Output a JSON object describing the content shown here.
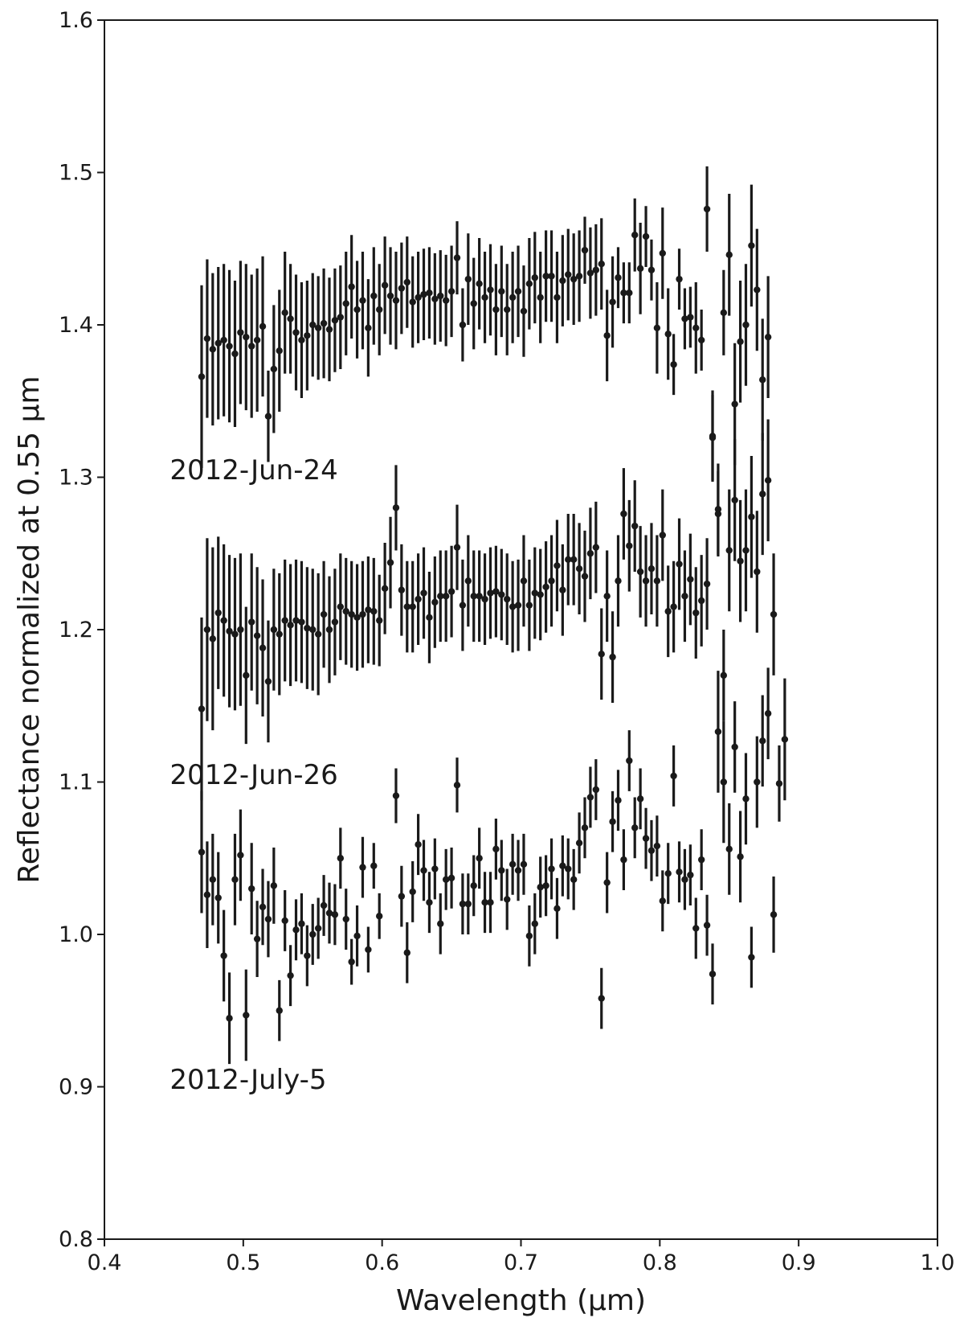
{
  "chart_data": {
    "type": "scatter",
    "title": "",
    "xlabel": "Wavelength (µm)",
    "ylabel": "Reflectance normalized at 0.55 µm",
    "xlim": [
      0.4,
      1.0
    ],
    "ylim": [
      0.8,
      1.6
    ],
    "x_ticks": [
      "0.4",
      "0.5",
      "0.6",
      "0.7",
      "0.8",
      "0.9",
      "1.0"
    ],
    "y_ticks": [
      "0.8",
      "0.9",
      "1.0",
      "1.1",
      "1.2",
      "1.3",
      "1.4",
      "1.5",
      "1.6"
    ],
    "grid": false,
    "error_bars": true,
    "annotations": [
      {
        "text": "2012-Jun-24",
        "x": 0.45,
        "y": 1.305
      },
      {
        "text": "2012-Jun-26",
        "x": 0.45,
        "y": 1.105
      },
      {
        "text": "2012-July-5",
        "x": 0.45,
        "y": 0.905
      }
    ],
    "series": [
      {
        "x": [
          0.47,
          0.474,
          0.478,
          0.482,
          0.486,
          0.49,
          0.494,
          0.498,
          0.502,
          0.506,
          0.51,
          0.514,
          0.518,
          0.522,
          0.526,
          0.53,
          0.534,
          0.538,
          0.542,
          0.546,
          0.55,
          0.554,
          0.558,
          0.562,
          0.566,
          0.57,
          0.574,
          0.578,
          0.582,
          0.586,
          0.59,
          0.594,
          0.598,
          0.602,
          0.606,
          0.61,
          0.614,
          0.618,
          0.622,
          0.626,
          0.63,
          0.634,
          0.638,
          0.642,
          0.646,
          0.65,
          0.654,
          0.658,
          0.662,
          0.666,
          0.67,
          0.674,
          0.678,
          0.682,
          0.686,
          0.69,
          0.694,
          0.698,
          0.702,
          0.706,
          0.71,
          0.714,
          0.718,
          0.722,
          0.726,
          0.73,
          0.734,
          0.738,
          0.742,
          0.746,
          0.75,
          0.754,
          0.758,
          0.762,
          0.766,
          0.77,
          0.774,
          0.778,
          0.782,
          0.786,
          0.79,
          0.794,
          0.798,
          0.802,
          0.806,
          0.81,
          0.814,
          0.818,
          0.822,
          0.826,
          0.83,
          0.834,
          0.838,
          0.842,
          0.846,
          0.85,
          0.854,
          0.858,
          0.862,
          0.866,
          0.87,
          0.874,
          0.878
        ],
        "y": [
          1.366,
          1.391,
          1.384,
          1.388,
          1.39,
          1.386,
          1.381,
          1.395,
          1.392,
          1.386,
          1.39,
          1.399,
          1.34,
          1.371,
          1.383,
          1.408,
          1.404,
          1.395,
          1.39,
          1.393,
          1.4,
          1.398,
          1.401,
          1.397,
          1.403,
          1.405,
          1.414,
          1.425,
          1.41,
          1.416,
          1.398,
          1.419,
          1.41,
          1.426,
          1.419,
          1.416,
          1.424,
          1.428,
          1.415,
          1.418,
          1.42,
          1.421,
          1.417,
          1.419,
          1.416,
          1.422,
          1.444,
          1.4,
          1.43,
          1.414,
          1.427,
          1.418,
          1.423,
          1.41,
          1.422,
          1.41,
          1.418,
          1.422,
          1.409,
          1.427,
          1.431,
          1.418,
          1.432,
          1.432,
          1.418,
          1.429,
          1.433,
          1.43,
          1.432,
          1.449,
          1.434,
          1.436,
          1.44,
          1.393,
          1.415,
          1.431,
          1.421,
          1.421,
          1.459,
          1.437,
          1.458,
          1.436,
          1.398,
          1.447,
          1.394,
          1.374,
          1.43,
          1.404,
          1.405,
          1.398,
          1.39,
          1.476,
          1.326,
          1.276,
          1.408,
          1.446,
          1.348,
          1.389,
          1.4,
          1.452,
          1.423,
          1.364,
          1.392
        ],
        "err": [
          0.06,
          0.052,
          0.05,
          0.05,
          0.05,
          0.05,
          0.048,
          0.047,
          0.048,
          0.047,
          0.047,
          0.046,
          0.03,
          0.042,
          0.04,
          0.04,
          0.036,
          0.038,
          0.038,
          0.036,
          0.034,
          0.034,
          0.036,
          0.034,
          0.034,
          0.034,
          0.034,
          0.034,
          0.032,
          0.032,
          0.032,
          0.032,
          0.03,
          0.032,
          0.032,
          0.032,
          0.03,
          0.03,
          0.03,
          0.03,
          0.03,
          0.03,
          0.03,
          0.03,
          0.03,
          0.03,
          0.024,
          0.024,
          0.03,
          0.03,
          0.03,
          0.03,
          0.03,
          0.03,
          0.03,
          0.03,
          0.03,
          0.03,
          0.03,
          0.03,
          0.03,
          0.03,
          0.03,
          0.03,
          0.03,
          0.03,
          0.03,
          0.03,
          0.03,
          0.022,
          0.03,
          0.03,
          0.03,
          0.03,
          0.03,
          0.02,
          0.02,
          0.02,
          0.024,
          0.03,
          0.02,
          0.02,
          0.03,
          0.03,
          0.03,
          0.02,
          0.02,
          0.02,
          0.02,
          0.03,
          0.02,
          0.028,
          0.028,
          0.028,
          0.028,
          0.04,
          0.04,
          0.04,
          0.04,
          0.04,
          0.04,
          0.04,
          0.04
        ]
      },
      {
        "x": [
          0.47,
          0.474,
          0.478,
          0.482,
          0.486,
          0.49,
          0.494,
          0.498,
          0.502,
          0.506,
          0.51,
          0.514,
          0.518,
          0.522,
          0.526,
          0.53,
          0.534,
          0.538,
          0.542,
          0.546,
          0.55,
          0.554,
          0.558,
          0.562,
          0.566,
          0.57,
          0.574,
          0.578,
          0.582,
          0.586,
          0.59,
          0.594,
          0.598,
          0.602,
          0.606,
          0.61,
          0.614,
          0.618,
          0.622,
          0.626,
          0.63,
          0.634,
          0.638,
          0.642,
          0.646,
          0.65,
          0.654,
          0.658,
          0.662,
          0.666,
          0.67,
          0.674,
          0.678,
          0.682,
          0.686,
          0.69,
          0.694,
          0.698,
          0.702,
          0.706,
          0.71,
          0.714,
          0.718,
          0.722,
          0.726,
          0.73,
          0.734,
          0.738,
          0.742,
          0.746,
          0.75,
          0.754,
          0.758,
          0.762,
          0.766,
          0.77,
          0.774,
          0.778,
          0.782,
          0.786,
          0.79,
          0.794,
          0.798,
          0.802,
          0.806,
          0.81,
          0.814,
          0.818,
          0.822,
          0.826,
          0.83,
          0.834,
          0.838,
          0.842,
          0.846,
          0.85,
          0.854,
          0.858,
          0.862,
          0.866,
          0.87,
          0.874,
          0.878,
          0.882
        ],
        "y": [
          1.148,
          1.2,
          1.194,
          1.211,
          1.206,
          1.199,
          1.197,
          1.2,
          1.17,
          1.205,
          1.196,
          1.188,
          1.166,
          1.2,
          1.197,
          1.206,
          1.203,
          1.206,
          1.205,
          1.201,
          1.2,
          1.197,
          1.21,
          1.2,
          1.205,
          1.215,
          1.212,
          1.21,
          1.208,
          1.21,
          1.213,
          1.212,
          1.206,
          1.227,
          1.244,
          1.28,
          1.226,
          1.215,
          1.215,
          1.22,
          1.224,
          1.208,
          1.218,
          1.222,
          1.222,
          1.225,
          1.254,
          1.216,
          1.232,
          1.222,
          1.222,
          1.22,
          1.224,
          1.225,
          1.223,
          1.22,
          1.215,
          1.216,
          1.232,
          1.216,
          1.224,
          1.223,
          1.228,
          1.232,
          1.242,
          1.226,
          1.246,
          1.246,
          1.24,
          1.235,
          1.25,
          1.254,
          1.184,
          1.222,
          1.182,
          1.232,
          1.276,
          1.255,
          1.268,
          1.238,
          1.232,
          1.24,
          1.232,
          1.262,
          1.212,
          1.215,
          1.243,
          1.222,
          1.233,
          1.211,
          1.219,
          1.23,
          1.327,
          1.279,
          1.17,
          1.252,
          1.285,
          1.245,
          1.252,
          1.274,
          1.238,
          1.289,
          1.298,
          1.21
        ],
        "err": [
          0.06,
          0.06,
          0.06,
          0.05,
          0.05,
          0.05,
          0.05,
          0.05,
          0.045,
          0.045,
          0.045,
          0.045,
          0.04,
          0.04,
          0.04,
          0.04,
          0.04,
          0.04,
          0.04,
          0.04,
          0.04,
          0.04,
          0.035,
          0.035,
          0.035,
          0.035,
          0.035,
          0.035,
          0.035,
          0.035,
          0.035,
          0.035,
          0.03,
          0.03,
          0.03,
          0.028,
          0.03,
          0.03,
          0.03,
          0.03,
          0.03,
          0.03,
          0.03,
          0.03,
          0.03,
          0.03,
          0.028,
          0.03,
          0.03,
          0.03,
          0.03,
          0.03,
          0.03,
          0.03,
          0.03,
          0.03,
          0.03,
          0.03,
          0.03,
          0.03,
          0.03,
          0.03,
          0.03,
          0.03,
          0.03,
          0.03,
          0.03,
          0.03,
          0.03,
          0.03,
          0.03,
          0.03,
          0.03,
          0.03,
          0.03,
          0.03,
          0.03,
          0.03,
          0.03,
          0.03,
          0.03,
          0.03,
          0.03,
          0.03,
          0.03,
          0.03,
          0.03,
          0.03,
          0.03,
          0.03,
          0.03,
          0.03,
          0.03,
          0.03,
          0.03,
          0.04,
          0.04,
          0.04,
          0.04,
          0.04,
          0.04,
          0.04,
          0.04,
          0.04
        ]
      },
      {
        "x": [
          0.47,
          0.474,
          0.478,
          0.482,
          0.486,
          0.49,
          0.494,
          0.498,
          0.502,
          0.506,
          0.51,
          0.514,
          0.518,
          0.522,
          0.526,
          0.53,
          0.534,
          0.538,
          0.542,
          0.546,
          0.55,
          0.554,
          0.558,
          0.562,
          0.566,
          0.57,
          0.574,
          0.578,
          0.582,
          0.586,
          0.59,
          0.594,
          0.598,
          0.61,
          0.614,
          0.618,
          0.622,
          0.626,
          0.63,
          0.634,
          0.638,
          0.642,
          0.646,
          0.65,
          0.654,
          0.658,
          0.662,
          0.666,
          0.67,
          0.674,
          0.678,
          0.682,
          0.686,
          0.69,
          0.694,
          0.698,
          0.702,
          0.706,
          0.71,
          0.714,
          0.718,
          0.722,
          0.726,
          0.73,
          0.734,
          0.738,
          0.742,
          0.746,
          0.75,
          0.754,
          0.758,
          0.762,
          0.766,
          0.77,
          0.774,
          0.778,
          0.782,
          0.786,
          0.79,
          0.794,
          0.798,
          0.802,
          0.806,
          0.81,
          0.814,
          0.818,
          0.822,
          0.826,
          0.83,
          0.834,
          0.838,
          0.842,
          0.846,
          0.85,
          0.854,
          0.858,
          0.862,
          0.866,
          0.87,
          0.874,
          0.878,
          0.882,
          0.886,
          0.89
        ],
        "y": [
          1.054,
          1.026,
          1.036,
          1.024,
          0.986,
          0.945,
          1.036,
          1.052,
          0.947,
          1.03,
          0.997,
          1.018,
          1.01,
          1.032,
          0.95,
          1.009,
          0.973,
          1.003,
          1.007,
          0.986,
          1.0,
          1.004,
          1.019,
          1.014,
          1.013,
          1.05,
          1.01,
          0.982,
          0.999,
          1.044,
          0.99,
          1.045,
          1.012,
          1.091,
          1.025,
          0.988,
          1.028,
          1.059,
          1.042,
          1.021,
          1.043,
          1.007,
          1.036,
          1.037,
          1.098,
          1.02,
          1.02,
          1.032,
          1.05,
          1.021,
          1.021,
          1.056,
          1.042,
          1.023,
          1.046,
          1.042,
          1.046,
          0.999,
          1.007,
          1.031,
          1.032,
          1.043,
          1.017,
          1.045,
          1.043,
          1.036,
          1.06,
          1.07,
          1.09,
          1.095,
          0.958,
          1.034,
          1.074,
          1.088,
          1.049,
          1.114,
          1.07,
          1.089,
          1.063,
          1.055,
          1.058,
          1.022,
          1.04,
          1.104,
          1.041,
          1.036,
          1.039,
          1.004,
          1.049,
          1.006,
          0.974,
          1.133,
          1.1,
          1.056,
          1.123,
          1.051,
          1.089,
          0.985,
          1.1,
          1.127,
          1.145,
          1.013,
          1.099,
          1.128
        ],
        "err": [
          0.04,
          0.035,
          0.03,
          0.03,
          0.03,
          0.03,
          0.03,
          0.03,
          0.03,
          0.03,
          0.025,
          0.025,
          0.025,
          0.025,
          0.02,
          0.02,
          0.02,
          0.02,
          0.02,
          0.02,
          0.02,
          0.02,
          0.02,
          0.02,
          0.02,
          0.02,
          0.02,
          0.015,
          0.02,
          0.02,
          0.015,
          0.015,
          0.015,
          0.018,
          0.02,
          0.02,
          0.02,
          0.02,
          0.02,
          0.02,
          0.02,
          0.02,
          0.02,
          0.02,
          0.018,
          0.02,
          0.02,
          0.02,
          0.02,
          0.02,
          0.02,
          0.02,
          0.02,
          0.02,
          0.02,
          0.02,
          0.02,
          0.02,
          0.02,
          0.02,
          0.02,
          0.02,
          0.02,
          0.02,
          0.02,
          0.02,
          0.02,
          0.02,
          0.02,
          0.02,
          0.02,
          0.02,
          0.02,
          0.02,
          0.02,
          0.02,
          0.02,
          0.02,
          0.02,
          0.02,
          0.02,
          0.02,
          0.02,
          0.02,
          0.02,
          0.02,
          0.02,
          0.02,
          0.02,
          0.02,
          0.02,
          0.04,
          0.04,
          0.03,
          0.03,
          0.03,
          0.03,
          0.02,
          0.03,
          0.03,
          0.03,
          0.025,
          0.025,
          0.04
        ]
      }
    ]
  }
}
